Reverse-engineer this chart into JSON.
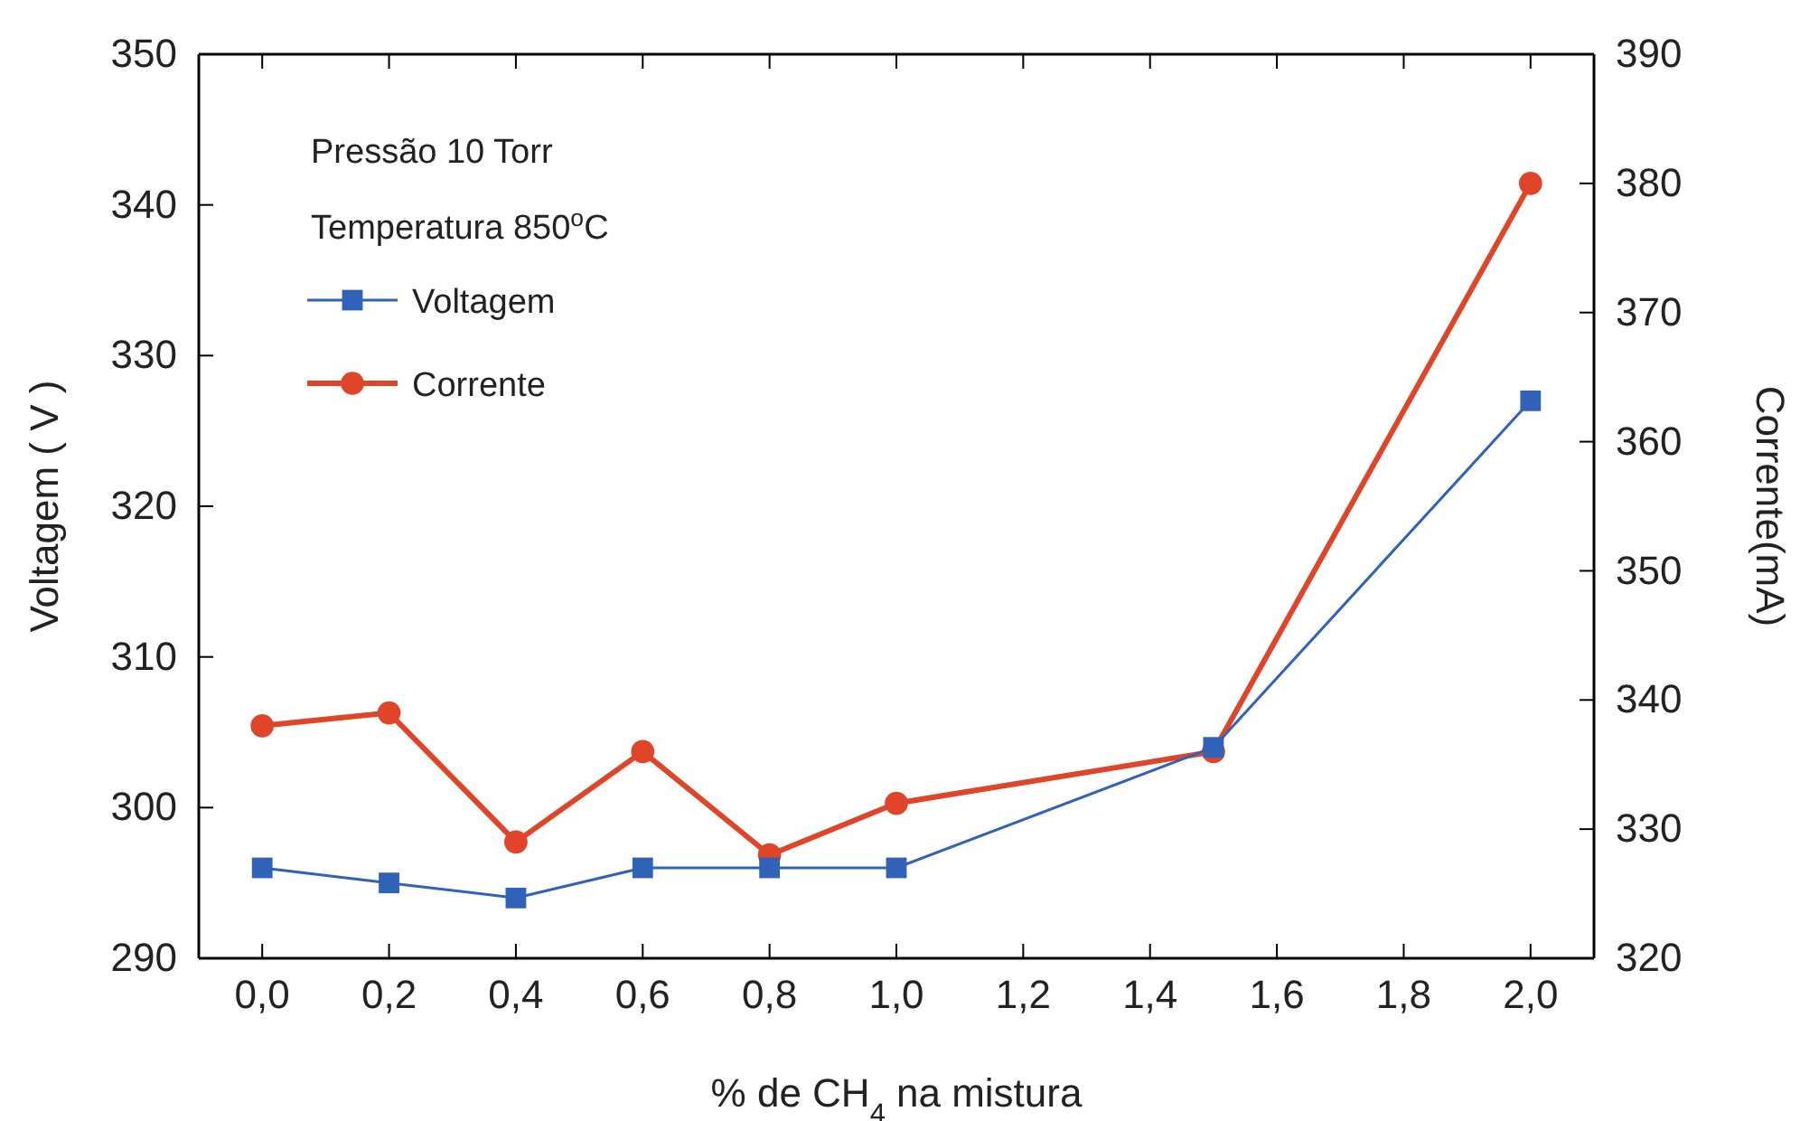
{
  "chart_data": {
    "type": "line",
    "xlabel": "% de CH$_{4}$ na mistura",
    "ylabel": "Voltagem ( V )",
    "y2label": "Corrente(mA)",
    "x": [
      0,
      0.2,
      0.4,
      0.6,
      0.8,
      1.0,
      1.5,
      2.0
    ],
    "xlim": [
      -0.1,
      2.1
    ],
    "xticks": [
      {
        "value": 0,
        "label": "0,0"
      },
      {
        "value": 0.2,
        "label": "0,2"
      },
      {
        "value": 0.4,
        "label": "0,4"
      },
      {
        "value": 0.6,
        "label": "0,6"
      },
      {
        "value": 0.8,
        "label": "0,8"
      },
      {
        "value": 1.0,
        "label": "1,0"
      },
      {
        "value": 1.2,
        "label": "1,2"
      },
      {
        "value": 1.4,
        "label": "1,4"
      },
      {
        "value": 1.6,
        "label": "1,6"
      },
      {
        "value": 1.8,
        "label": "1,8"
      },
      {
        "value": 2.0,
        "label": "2,0"
      }
    ],
    "ylim": [
      290,
      350
    ],
    "yticks": [
      290,
      300,
      310,
      320,
      330,
      340,
      350
    ],
    "y2lim": [
      320,
      390
    ],
    "y2ticks": [
      320,
      330,
      340,
      350,
      360,
      370,
      380,
      390
    ],
    "series": [
      {
        "name": "Voltagem",
        "color": "#2f62b8",
        "marker": "square",
        "values": [
          296,
          295,
          294,
          296,
          296,
          296,
          304,
          327
        ]
      },
      {
        "name": "Corrente",
        "color": "#e0452a",
        "marker": "circle",
        "axis": "y2",
        "values": [
          338,
          339,
          329,
          336,
          328,
          332,
          336,
          380
        ]
      }
    ],
    "annotations": [
      "Pressão 10 Torr",
      "Temperatura 850$^{o}$C"
    ],
    "legend": "top left",
    "grid": false,
    "line_style": "solid"
  }
}
